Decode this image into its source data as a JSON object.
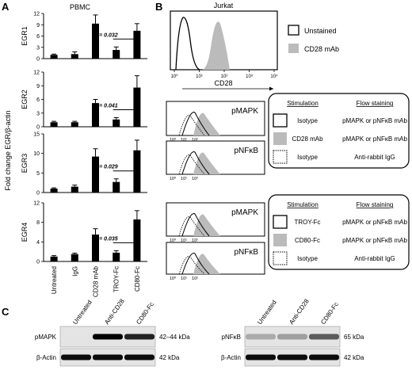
{
  "panel_labels": {
    "a": "A",
    "b": "B",
    "c": "C"
  },
  "panel_a": {
    "title": "PBMC",
    "y_axis_label": "Fold change EGR/β-actin",
    "categories": [
      "Untreated",
      "IgG",
      "CD28 mAb",
      "TROY-Fc",
      "CD80-Fc"
    ],
    "charts": [
      {
        "name": "EGR1",
        "yticks": [
          "0",
          "3",
          "6",
          "9",
          "12"
        ],
        "ymax": 12,
        "values": [
          1.0,
          1.2,
          9.3,
          2.3,
          7.4
        ],
        "errors": [
          0.2,
          0.6,
          2.3,
          0.8,
          1.9
        ],
        "p_text": "P = 0.032"
      },
      {
        "name": "EGR2",
        "yticks": [
          "0",
          "3",
          "6",
          "9",
          "12"
        ],
        "ymax": 12,
        "values": [
          1.0,
          1.0,
          5.2,
          1.6,
          8.6
        ],
        "errors": [
          0.2,
          0.2,
          0.8,
          0.4,
          2.6
        ],
        "p_text": "P = 0.041"
      },
      {
        "name": "EGR3",
        "yticks": [
          "0",
          "5",
          "10",
          "15"
        ],
        "ymax": 15,
        "values": [
          1.0,
          1.5,
          9.2,
          2.7,
          10.8
        ],
        "errors": [
          0.2,
          0.4,
          2.0,
          0.8,
          2.6
        ],
        "p_text": "P = 0.029"
      },
      {
        "name": "EGR4",
        "yticks": [
          "0",
          "4",
          "8",
          "12"
        ],
        "ymax": 12,
        "values": [
          1.0,
          1.5,
          5.5,
          1.8,
          8.6
        ],
        "errors": [
          0.2,
          0.2,
          1.2,
          0.4,
          1.8
        ],
        "p_text": "P = 0.035"
      }
    ]
  },
  "panel_b": {
    "jurkat_title": "Jurkat",
    "jurkat_xlabel": "CD28",
    "jurkat_ticks": [
      "10⁰",
      "10¹",
      "10²",
      "10³",
      "10⁴"
    ],
    "legend_unstained": "Unstained",
    "legend_cd28": "CD28 mAb",
    "hist_labels": [
      "pMAPK",
      "pNFκB",
      "pMAPK",
      "pNFκB"
    ],
    "box1": {
      "header_stim": "Stimulation",
      "header_flow": "Flow staining",
      "rows": [
        {
          "stim": "Isotype",
          "flow": "pMAPK or pNFκB mAb"
        },
        {
          "stim": "CD28 mAb",
          "flow": "pMAPK or pNFκB mAb"
        },
        {
          "stim": "Isotype",
          "flow": "Anti-rabbit IgG"
        }
      ]
    },
    "box2": {
      "header_stim": "Stimulation",
      "header_flow": "Flow staining",
      "rows": [
        {
          "stim": "TROY-Fc",
          "flow": "pMAPK or pNFκB mAb"
        },
        {
          "stim": "CD80-Fc",
          "flow": "pMAPK or pNFκB mAb"
        },
        {
          "stim": "Isotype",
          "flow": "Anti-rabbit IgG"
        }
      ]
    }
  },
  "panel_c": {
    "left_lanes": [
      "Untreated",
      "Anti-CD28",
      "CD80-Fc"
    ],
    "right_lanes": [
      "Untreated",
      "Anti-CD28",
      "CD80-Fc"
    ],
    "left_rows": [
      {
        "label": "pMAPK",
        "size": "42–44 kDa"
      },
      {
        "label": "β-Actin",
        "size": "42 kDa"
      }
    ],
    "right_rows": [
      {
        "label": "pNFκB",
        "size": "65 kDa"
      },
      {
        "label": "β-Actin",
        "size": "42 kDa"
      }
    ]
  }
}
